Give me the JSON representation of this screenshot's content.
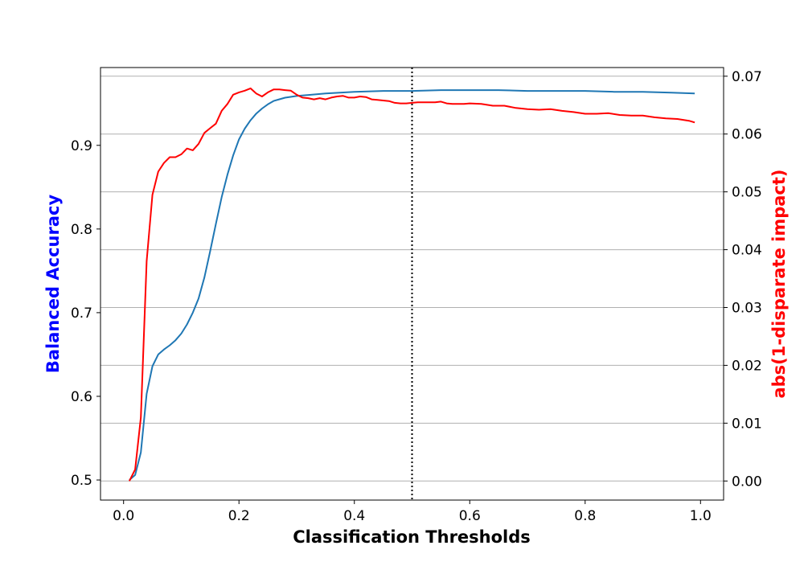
{
  "chart_data": {
    "type": "line",
    "title": "",
    "xlabel": "Classification Thresholds",
    "ylabel_left": "Balanced Accuracy",
    "ylabel_right": "abs(1-disparate impact)",
    "xlim": [
      -0.04,
      1.04
    ],
    "ylim_left": [
      0.476,
      0.993
    ],
    "ylim_right": [
      -0.0033,
      0.0715
    ],
    "x_ticks": [
      0.0,
      0.2,
      0.4,
      0.6,
      0.8,
      1.0
    ],
    "x_tick_labels": [
      "0.0",
      "0.2",
      "0.4",
      "0.6",
      "0.8",
      "1.0"
    ],
    "y_left_ticks": [
      0.5,
      0.6,
      0.7,
      0.8,
      0.9
    ],
    "y_left_tick_labels": [
      "0.5",
      "0.6",
      "0.7",
      "0.8",
      "0.9"
    ],
    "y_right_ticks": [
      0.0,
      0.01,
      0.02,
      0.03,
      0.04,
      0.05,
      0.06,
      0.07
    ],
    "y_right_tick_labels": [
      "0.00",
      "0.01",
      "0.02",
      "0.03",
      "0.04",
      "0.05",
      "0.06",
      "0.07"
    ],
    "grid": "horizontal lines at right-axis ticks",
    "vline_x": 0.5,
    "colors": {
      "accuracy": "#1f77b4",
      "disparate": "#ff0000",
      "left_label": "#0000ff",
      "right_label": "#ff0000",
      "grid": "#b0b0b0",
      "axes": "#000000"
    },
    "series": [
      {
        "axis": "left",
        "x": [
          0.01,
          0.02,
          0.03,
          0.04,
          0.05,
          0.06,
          0.07,
          0.08,
          0.09,
          0.1,
          0.11,
          0.12,
          0.13,
          0.14,
          0.15,
          0.16,
          0.17,
          0.18,
          0.19,
          0.2,
          0.21,
          0.22,
          0.23,
          0.24,
          0.25,
          0.26,
          0.27,
          0.28,
          0.3,
          0.35,
          0.4,
          0.45,
          0.5,
          0.55,
          0.6,
          0.65,
          0.7,
          0.75,
          0.8,
          0.85,
          0.9,
          0.95,
          0.99
        ],
        "values": [
          0.5,
          0.506,
          0.533,
          0.603,
          0.636,
          0.65,
          0.656,
          0.661,
          0.667,
          0.675,
          0.686,
          0.7,
          0.717,
          0.742,
          0.773,
          0.806,
          0.838,
          0.865,
          0.888,
          0.907,
          0.92,
          0.93,
          0.938,
          0.944,
          0.949,
          0.953,
          0.955,
          0.957,
          0.959,
          0.962,
          0.964,
          0.965,
          0.965,
          0.966,
          0.966,
          0.966,
          0.965,
          0.965,
          0.965,
          0.964,
          0.964,
          0.963,
          0.962
        ]
      },
      {
        "axis": "right",
        "x": [
          0.01,
          0.02,
          0.03,
          0.04,
          0.05,
          0.06,
          0.07,
          0.08,
          0.09,
          0.1,
          0.11,
          0.12,
          0.13,
          0.14,
          0.15,
          0.16,
          0.17,
          0.18,
          0.19,
          0.2,
          0.21,
          0.22,
          0.23,
          0.24,
          0.25,
          0.26,
          0.27,
          0.28,
          0.29,
          0.3,
          0.31,
          0.32,
          0.33,
          0.34,
          0.35,
          0.36,
          0.37,
          0.38,
          0.39,
          0.4,
          0.41,
          0.42,
          0.43,
          0.44,
          0.45,
          0.46,
          0.47,
          0.48,
          0.49,
          0.5,
          0.51,
          0.52,
          0.53,
          0.54,
          0.55,
          0.56,
          0.57,
          0.58,
          0.59,
          0.6,
          0.62,
          0.64,
          0.66,
          0.68,
          0.7,
          0.72,
          0.74,
          0.76,
          0.78,
          0.8,
          0.82,
          0.84,
          0.86,
          0.88,
          0.9,
          0.92,
          0.94,
          0.96,
          0.98,
          0.99
        ],
        "values": [
          0.0,
          0.002,
          0.011,
          0.038,
          0.0495,
          0.0535,
          0.055,
          0.056,
          0.056,
          0.0565,
          0.0575,
          0.0572,
          0.0583,
          0.0602,
          0.061,
          0.0618,
          0.064,
          0.0652,
          0.0668,
          0.0672,
          0.0675,
          0.0679,
          0.067,
          0.0665,
          0.0672,
          0.0677,
          0.0677,
          0.0676,
          0.0675,
          0.0668,
          0.0663,
          0.0662,
          0.066,
          0.0662,
          0.066,
          0.0663,
          0.0665,
          0.0666,
          0.0663,
          0.0663,
          0.0665,
          0.0664,
          0.066,
          0.0659,
          0.0658,
          0.0657,
          0.0654,
          0.0653,
          0.0653,
          0.0654,
          0.0655,
          0.0655,
          0.0655,
          0.0655,
          0.0656,
          0.0653,
          0.0652,
          0.0652,
          0.0652,
          0.0653,
          0.0652,
          0.0649,
          0.0649,
          0.0645,
          0.0643,
          0.0642,
          0.0643,
          0.064,
          0.0638,
          0.0635,
          0.0635,
          0.0636,
          0.0633,
          0.0632,
          0.0632,
          0.0629,
          0.0627,
          0.0626,
          0.0623,
          0.062
        ]
      }
    ]
  }
}
